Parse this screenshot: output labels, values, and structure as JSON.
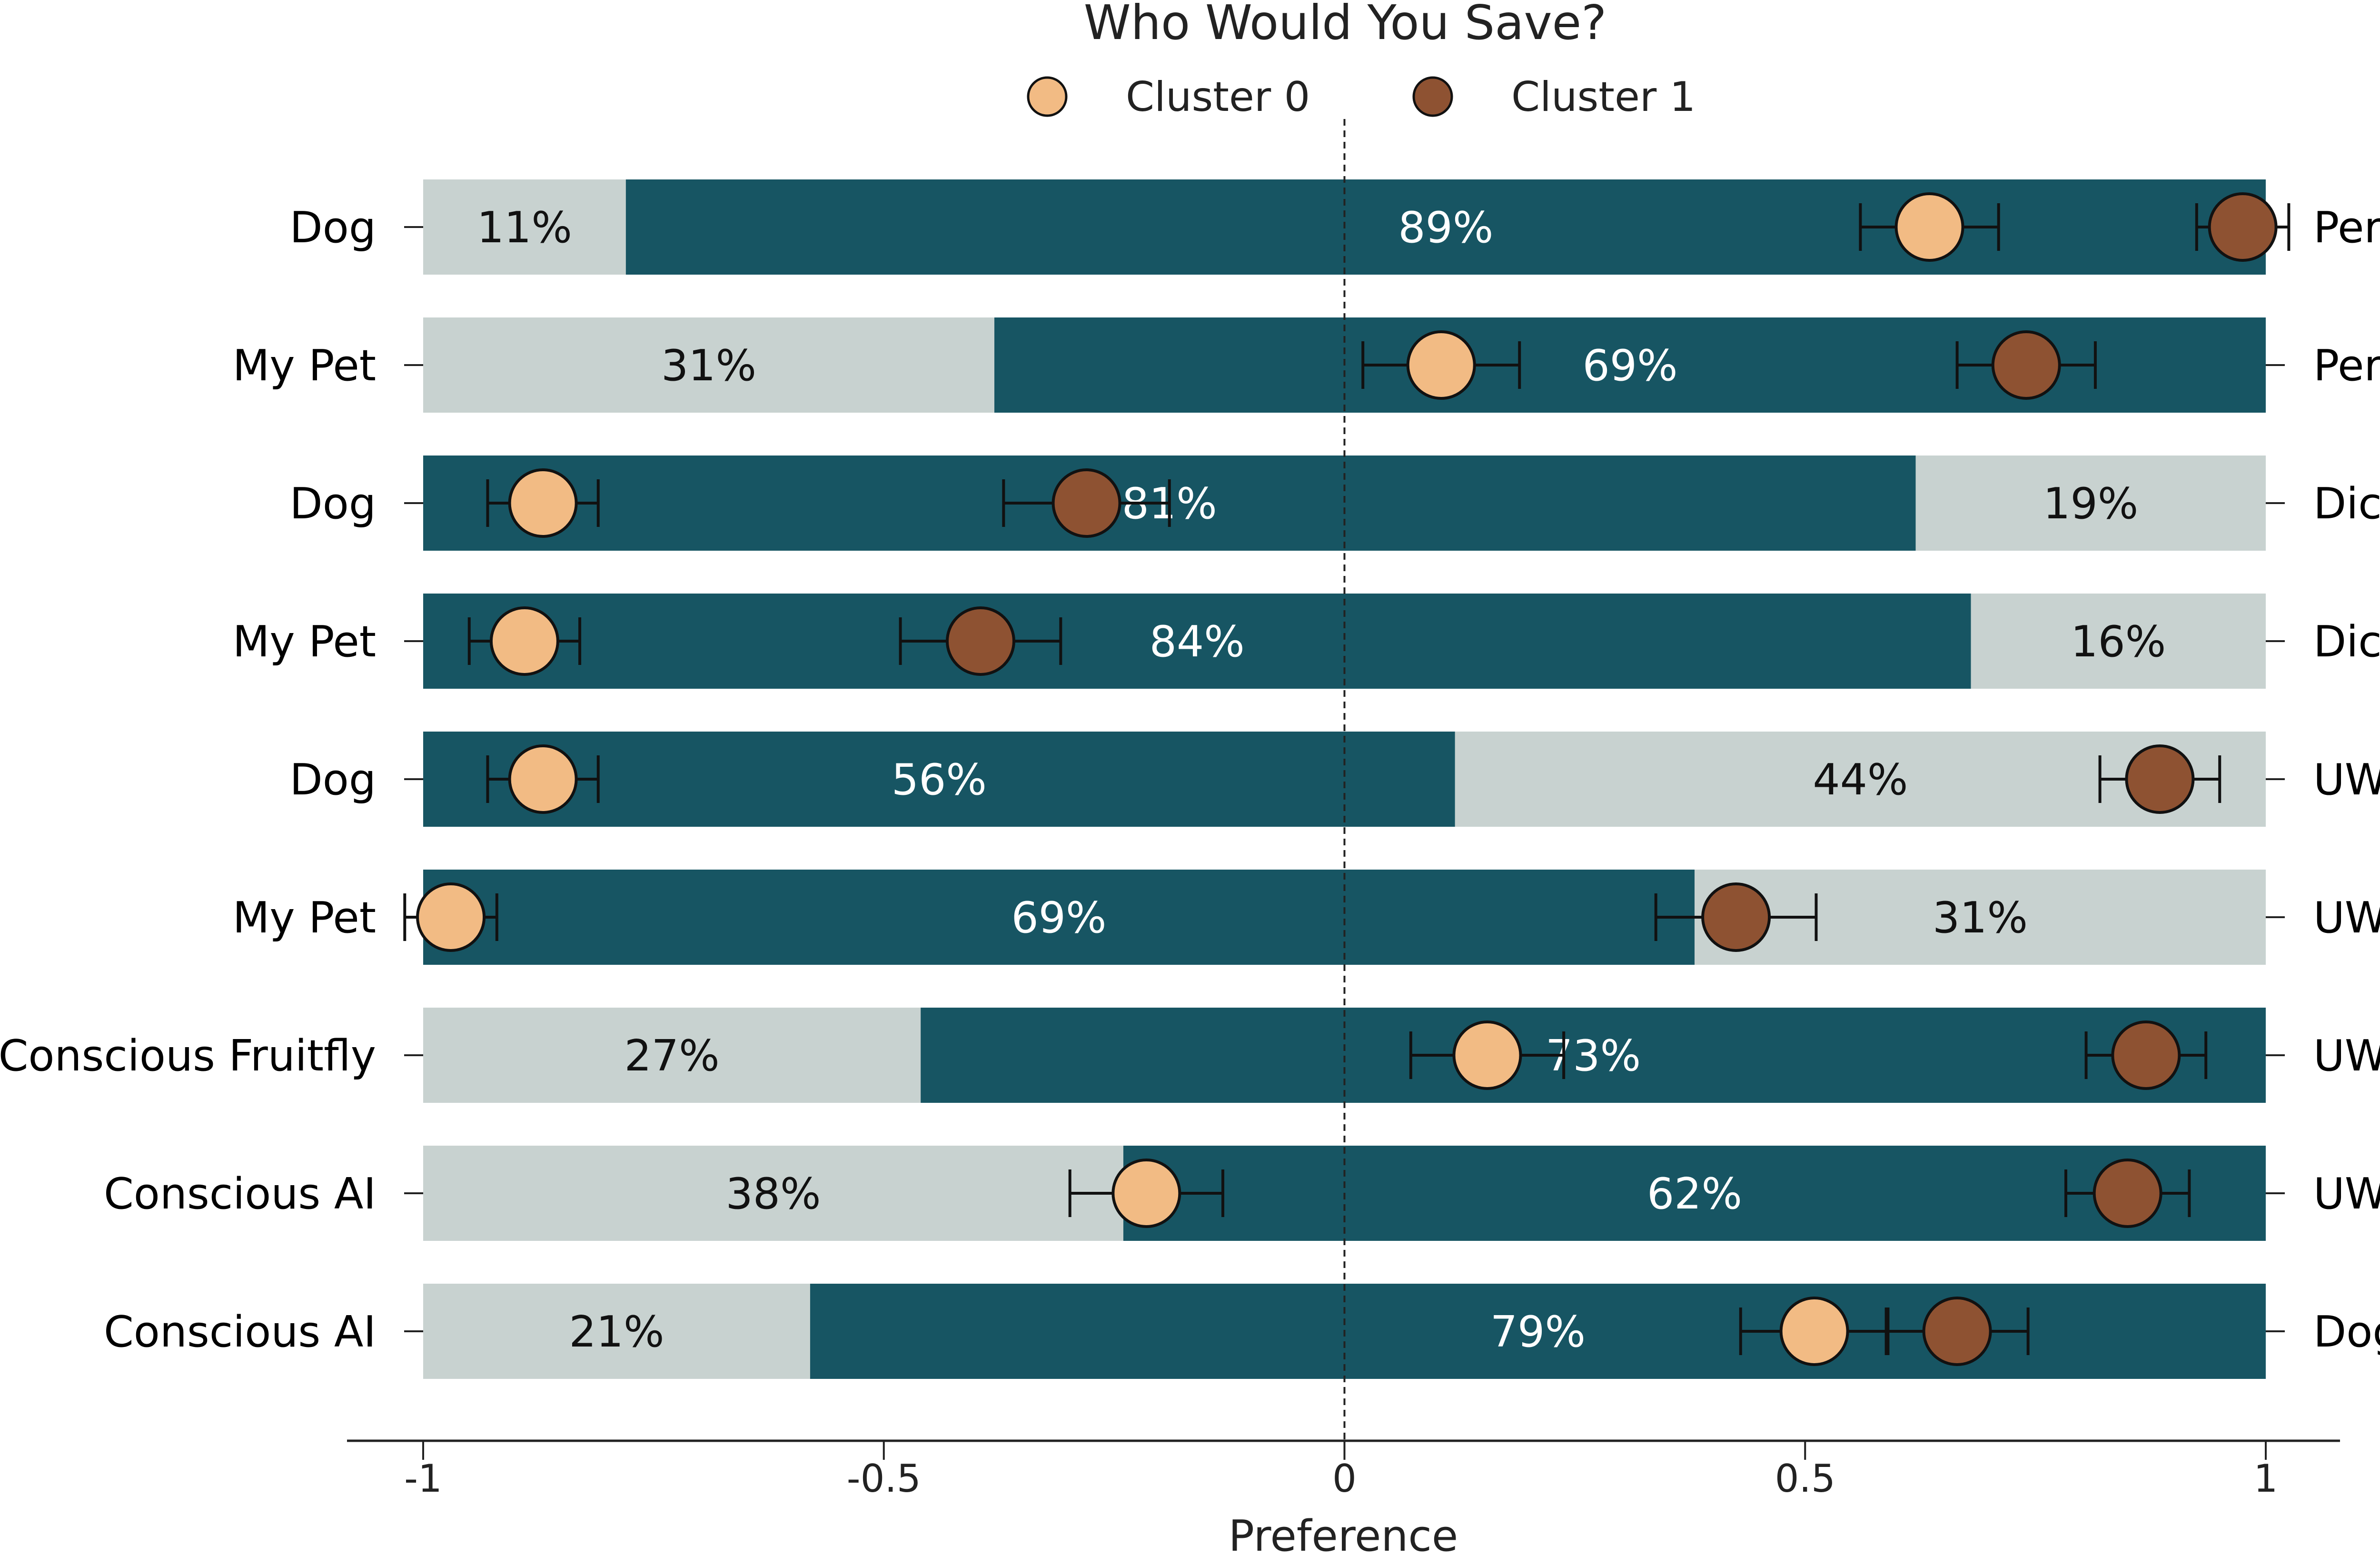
{
  "colors": {
    "bar_dark": "#175563",
    "bar_light": "#c8d2d0",
    "cluster_0": "#f2bb84",
    "cluster_1": "#8e5232",
    "marker_edge": "#111111",
    "error_bar": "#111111"
  },
  "chart_data": {
    "type": "bar",
    "orientation": "horizontal-diverging",
    "title": "Who Would You Save?",
    "xlabel": "Preference",
    "xlim": [
      -1,
      1
    ],
    "xticks": [
      -1,
      -0.5,
      0,
      0.5,
      1
    ],
    "xtick_labels": [
      "-1",
      "-0.5",
      "0",
      "0.5",
      "1"
    ],
    "zero_line": "dashed",
    "legend": {
      "placement": "top-center",
      "entries": [
        "Cluster 0",
        "Cluster 1"
      ]
    },
    "rows": [
      {
        "left": "Dog",
        "right": "Person",
        "left_pct": 11,
        "right_pct": 89,
        "left_label": "11%",
        "right_label": "89%",
        "cluster_0": {
          "mean": 0.635,
          "err": 0.075
        },
        "cluster_1": {
          "mean": 0.975,
          "err": 0.05
        }
      },
      {
        "left": "My Pet",
        "right": "Person",
        "left_pct": 31,
        "right_pct": 69,
        "left_label": "31%",
        "right_label": "69%",
        "cluster_0": {
          "mean": 0.105,
          "err": 0.085
        },
        "cluster_1": {
          "mean": 0.74,
          "err": 0.075
        }
      },
      {
        "left": "Dog",
        "right": "Dictator",
        "left_pct": 81,
        "right_pct": 19,
        "left_label": "81%",
        "right_label": "19%",
        "cluster_0": {
          "mean": -0.87,
          "err": 0.06
        },
        "cluster_1": {
          "mean": -0.28,
          "err": 0.09
        }
      },
      {
        "left": "My Pet",
        "right": "Dictator",
        "left_pct": 84,
        "right_pct": 16,
        "left_label": "84%",
        "right_label": "16%",
        "cluster_0": {
          "mean": -0.89,
          "err": 0.06
        },
        "cluster_1": {
          "mean": -0.395,
          "err": 0.087
        }
      },
      {
        "left": "Dog",
        "right": "UWS",
        "left_pct": 56,
        "right_pct": 44,
        "left_label": "56%",
        "right_label": "44%",
        "cluster_0": {
          "mean": -0.87,
          "err": 0.06
        },
        "cluster_1": {
          "mean": 0.885,
          "err": 0.065
        }
      },
      {
        "left": "My Pet",
        "right": "UWS",
        "left_pct": 69,
        "right_pct": 31,
        "left_label": "69%",
        "right_label": "31%",
        "cluster_0": {
          "mean": -0.97,
          "err": 0.05
        },
        "cluster_1": {
          "mean": 0.425,
          "err": 0.087
        }
      },
      {
        "left": "Conscious Fruitfly",
        "right": "UWS",
        "left_pct": 27,
        "right_pct": 73,
        "left_label": "27%",
        "right_label": "73%",
        "cluster_0": {
          "mean": 0.155,
          "err": 0.083
        },
        "cluster_1": {
          "mean": 0.87,
          "err": 0.065
        }
      },
      {
        "left": "Conscious AI",
        "right": "UWS",
        "left_pct": 38,
        "right_pct": 62,
        "left_label": "38%",
        "right_label": "62%",
        "cluster_0": {
          "mean": -0.215,
          "err": 0.083
        },
        "cluster_1": {
          "mean": 0.85,
          "err": 0.067
        }
      },
      {
        "left": "Conscious AI",
        "right": "Dog",
        "left_pct": 21,
        "right_pct": 79,
        "left_label": "21%",
        "right_label": "79%",
        "cluster_0": {
          "mean": 0.51,
          "err": 0.08
        },
        "cluster_1": {
          "mean": 0.665,
          "err": 0.077
        }
      }
    ]
  }
}
